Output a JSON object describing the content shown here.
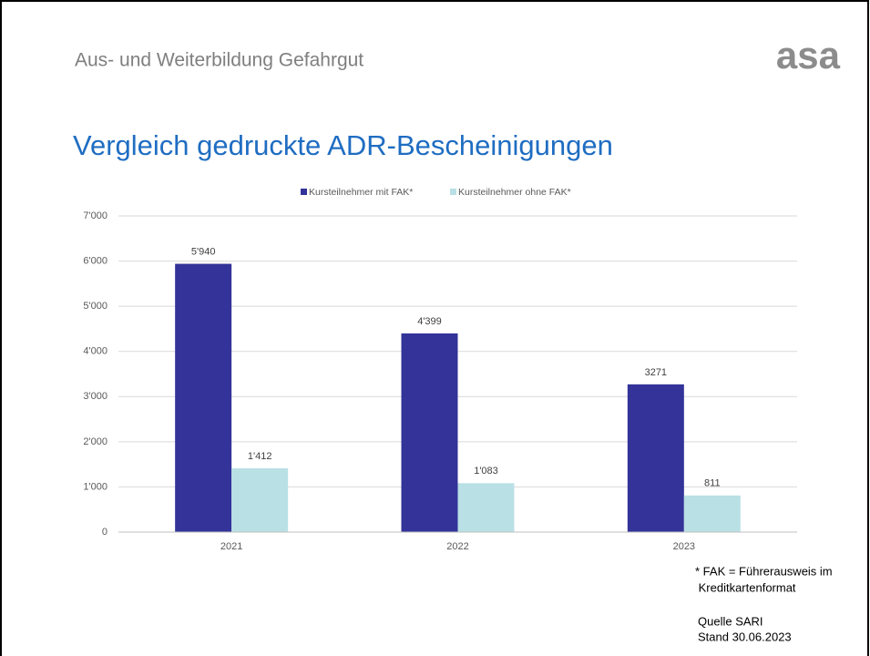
{
  "header": {
    "title": "Aus- und Weiterbildung Gefahrgut",
    "logo": "asa"
  },
  "chart_data": {
    "type": "bar",
    "title": "Vergleich gedruckte ADR-Bescheinigungen",
    "categories": [
      "2021",
      "2022",
      "2023"
    ],
    "series": [
      {
        "name": "Kursteilnehmer mit FAK*",
        "color": "#333399",
        "values": [
          5940,
          4399,
          3271
        ],
        "value_labels": [
          "5'940",
          "4'399",
          "3271"
        ]
      },
      {
        "name": "Kursteilnehmer ohne FAK*",
        "color": "#b9e0e5",
        "values": [
          1412,
          1083,
          811
        ],
        "value_labels": [
          "1'412",
          "1'083",
          "811"
        ]
      }
    ],
    "ylim": [
      0,
      7000
    ],
    "yticks": [
      0,
      {
        "value": 1000,
        "label": "1'000"
      },
      {
        "value": 2000,
        "label": "2'000"
      },
      {
        "value": 3000,
        "label": "3'000"
      },
      {
        "value": 4000,
        "label": "4'000"
      },
      {
        "value": 5000,
        "label": "5'000"
      },
      {
        "value": 6000,
        "label": "6'000"
      },
      {
        "value": 7000,
        "label": "7'000"
      }
    ],
    "grid": true,
    "legend": "top"
  },
  "notes": {
    "footnote": [
      "* FAK = Führerausweis im",
      " Kreditkartenformat"
    ],
    "source": "Quelle SARI",
    "date": "Stand 30.06.2023"
  }
}
